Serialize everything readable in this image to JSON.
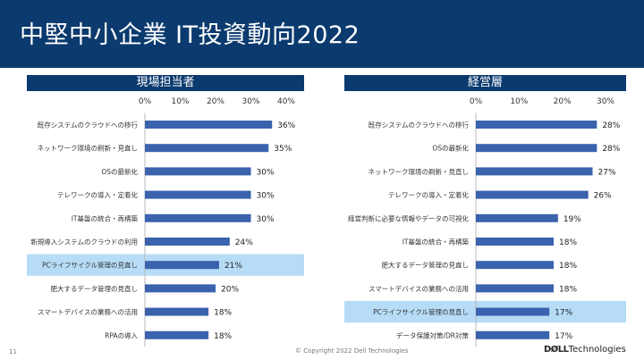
{
  "title": "中堅中小企業 IT投資動向2022",
  "footer": {
    "page_number": "11",
    "copyright": "© Copyright 2022 Dell Technologies",
    "logo_brand": "DØLL",
    "logo_suffix": "Technologies"
  },
  "colors": {
    "header": "#0b3a6e",
    "bar": "#3a62ad",
    "highlight": "#b6dcf7"
  },
  "chart_data": [
    {
      "type": "bar",
      "orientation": "horizontal",
      "title": "現場担当者",
      "xlim": [
        0,
        40
      ],
      "ticks": [
        "0%",
        "10%",
        "20%",
        "30%",
        "40%"
      ],
      "categories": [
        "既存システムのクラウドへの移行",
        "ネットワーク環境の刷新・見直し",
        "OSの最新化",
        "テレワークの導入・定着化",
        "IT基盤の統合・再構築",
        "新規導入システムのクラウドの利用",
        "PCライフサイクル管理の見直し",
        "肥大するデータ管理の見直し",
        "スマートデバイスの業務への活用",
        "RPAの導入"
      ],
      "values": [
        36,
        35,
        30,
        30,
        30,
        24,
        21,
        20,
        18,
        18
      ],
      "labels": [
        "36%",
        "35%",
        "30%",
        "30%",
        "30%",
        "24%",
        "21%",
        "20%",
        "18%",
        "18%"
      ],
      "highlight_category": "PCライフサイクル管理の見直し",
      "grid": false
    },
    {
      "type": "bar",
      "orientation": "horizontal",
      "title": "経営層",
      "xlim": [
        0,
        30
      ],
      "ticks": [
        "0%",
        "10%",
        "20%",
        "30%"
      ],
      "categories": [
        "既存システムのクラウドへの移行",
        "OSの最新化",
        "ネットワーク環境の刷新・見直し",
        "テレワークの導入・定着化",
        "経営判断に必要な情報やデータの可視化",
        "IT基盤の統合・再構築",
        "肥大するデータ管理の見直し",
        "スマートデバイスの業務への活用",
        "PCライフサイクル管理の見直し",
        "データ保護対策/DR対策"
      ],
      "values": [
        28,
        28,
        27,
        26,
        19,
        18,
        18,
        18,
        17,
        17
      ],
      "labels": [
        "28%",
        "28%",
        "27%",
        "26%",
        "19%",
        "18%",
        "18%",
        "18%",
        "17%",
        "17%"
      ],
      "highlight_category": "PCライフサイクル管理の見直し",
      "grid": false
    }
  ]
}
